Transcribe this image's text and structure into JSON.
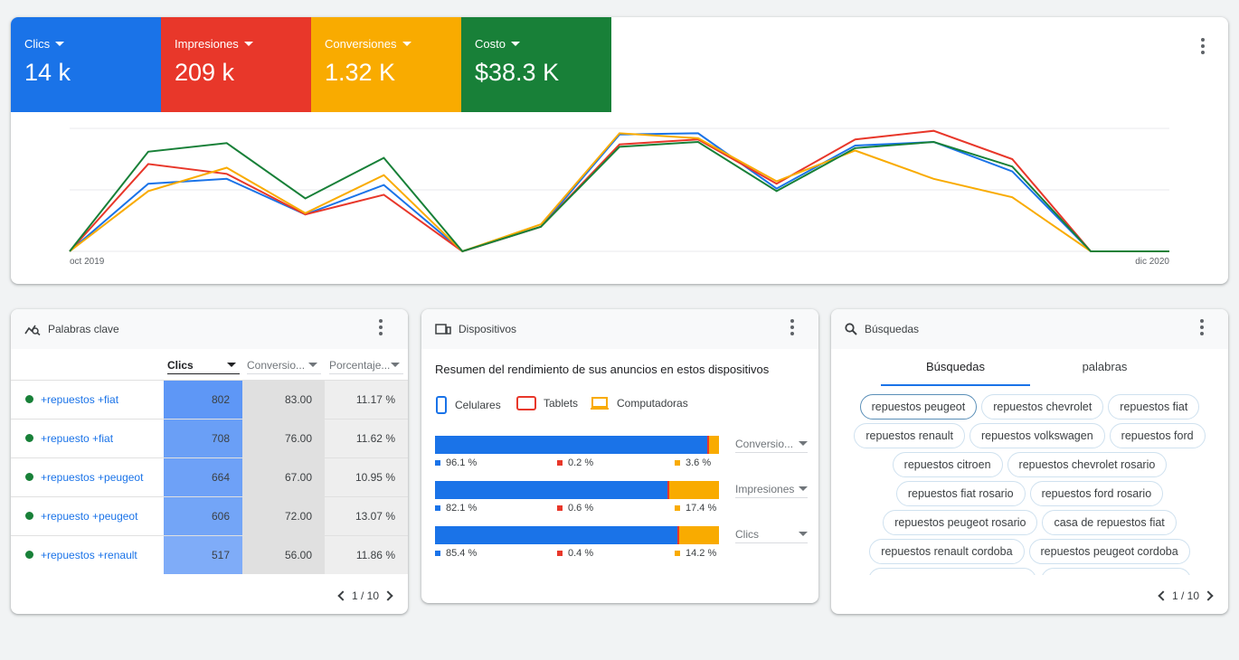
{
  "metrics": [
    {
      "label": "Clics",
      "value": "14 k",
      "color": "#1a73e8"
    },
    {
      "label": "Impresiones",
      "value": "209 k",
      "color": "#e8372a"
    },
    {
      "label": "Conversiones",
      "value": "1.32 K",
      "color": "#f9ab00"
    },
    {
      "label": "Costo",
      "value": "$38.3 K",
      "color": "#188038"
    }
  ],
  "chart_data": {
    "type": "line",
    "x_start_label": "oct 2019",
    "x_end_label": "dic 2020",
    "grid": true,
    "series": [
      {
        "name": "Clics",
        "color": "#1a73e8",
        "values": [
          0,
          0.55,
          0.59,
          0.3,
          0.54,
          0,
          0.2,
          0.95,
          0.96,
          0.51,
          0.86,
          0.89,
          0.65,
          0,
          0
        ]
      },
      {
        "name": "Impresiones",
        "color": "#e8372a",
        "values": [
          0,
          0.71,
          0.63,
          0.3,
          0.46,
          0,
          0.2,
          0.87,
          0.91,
          0.55,
          0.91,
          0.98,
          0.75,
          0,
          0
        ]
      },
      {
        "name": "Conversiones",
        "color": "#f9ab00",
        "values": [
          0,
          0.49,
          0.68,
          0.31,
          0.62,
          0,
          0.22,
          0.96,
          0.92,
          0.57,
          0.82,
          0.59,
          0.44,
          0,
          0
        ]
      },
      {
        "name": "Costo",
        "color": "#188038",
        "values": [
          0,
          0.81,
          0.88,
          0.43,
          0.76,
          0,
          0.2,
          0.85,
          0.89,
          0.49,
          0.84,
          0.89,
          0.69,
          0,
          0
        ]
      }
    ]
  },
  "keywords": {
    "title": "Palabras clave",
    "columns": [
      "Clics",
      "Conversio...",
      "Porcentaje..."
    ],
    "rows": [
      {
        "keyword": "+repuestos +fiat",
        "clics": "802",
        "conv": "83.00",
        "pct": "11.17 %",
        "clics_level": 1.0
      },
      {
        "keyword": "+repuesto +fiat",
        "clics": "708",
        "conv": "76.00",
        "pct": "11.62 %",
        "clics_level": 0.88
      },
      {
        "keyword": "+repuestos +peugeot",
        "clics": "664",
        "conv": "67.00",
        "pct": "10.95 %",
        "clics_level": 0.83
      },
      {
        "keyword": "+repuesto +peugeot",
        "clics": "606",
        "conv": "72.00",
        "pct": "13.07 %",
        "clics_level": 0.76
      },
      {
        "keyword": "+repuestos +renault",
        "clics": "517",
        "conv": "56.00",
        "pct": "11.86 %",
        "clics_level": 0.64
      }
    ],
    "pager": "1 / 10"
  },
  "devices": {
    "title": "Dispositivos",
    "subtitle": "Resumen del rendimiento de sus anuncios en estos dispositivos",
    "legend": [
      "Celulares",
      "Tablets",
      "Computadoras"
    ],
    "colors": [
      "#1a73e8",
      "#e8372a",
      "#f9ab00"
    ],
    "bars": [
      {
        "values": [
          96.1,
          0.2,
          3.6
        ],
        "labels": [
          "96.1 %",
          "0.2 %",
          "3.6 %"
        ],
        "metric": "Conversio..."
      },
      {
        "values": [
          82.1,
          0.6,
          17.4
        ],
        "labels": [
          "82.1 %",
          "0.6 %",
          "17.4 %"
        ],
        "metric": "Impresiones"
      },
      {
        "values": [
          85.4,
          0.4,
          14.2
        ],
        "labels": [
          "85.4 %",
          "0.4 %",
          "14.2 %"
        ],
        "metric": "Clics"
      }
    ]
  },
  "searches": {
    "title": "Búsquedas",
    "tabs": [
      "Búsquedas",
      "palabras"
    ],
    "chips": [
      [
        "repuestos peugeot",
        "repuestos chevrolet",
        "repuestos fiat"
      ],
      [
        "repuestos renault",
        "repuestos volkswagen",
        "repuestos ford"
      ],
      [
        "repuestos citroen",
        "repuestos chevrolet rosario"
      ],
      [
        "repuestos fiat rosario",
        "repuestos ford rosario"
      ],
      [
        "repuestos peugeot rosario",
        "casa de repuestos fiat"
      ],
      [
        "repuestos renault cordoba",
        "repuestos peugeot cordoba"
      ]
    ],
    "pager": "1 / 10"
  }
}
